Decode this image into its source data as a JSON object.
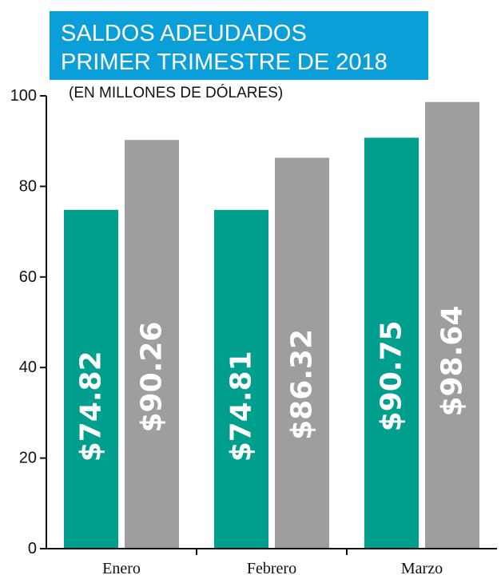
{
  "title_lines": [
    "SALDOS ADEUDADOS",
    "PRIMER TRIMESTRE DE 2018"
  ],
  "subtitle": "(EN MILLONES DE DÓLARES)",
  "colors": {
    "title_bg": "#0a9fd9",
    "series_1": "#009e8c",
    "series_2": "#9e9e9e",
    "axis": "#111111"
  },
  "chart_data": {
    "type": "bar",
    "title": "SALDOS ADEUDADOS PRIMER TRIMESTRE DE 2018",
    "subtitle": "(EN MILLONES DE DÓLARES)",
    "categories": [
      "Enero",
      "Febrero",
      "Marzo"
    ],
    "series": [
      {
        "values": [
          74.82,
          74.81,
          90.75
        ],
        "labels": [
          "$74.82",
          "$74.81",
          "$90.75"
        ],
        "color": "#009e8c"
      },
      {
        "values": [
          90.26,
          86.32,
          98.64
        ],
        "labels": [
          "$90.26",
          "$86.32",
          "$98.64"
        ],
        "color": "#9e9e9e"
      }
    ],
    "yticks": [
      0,
      20,
      40,
      60,
      80,
      100
    ],
    "ylim": [
      0,
      100
    ],
    "xlabel": "",
    "ylabel": "",
    "grid": false,
    "legend": "none"
  }
}
